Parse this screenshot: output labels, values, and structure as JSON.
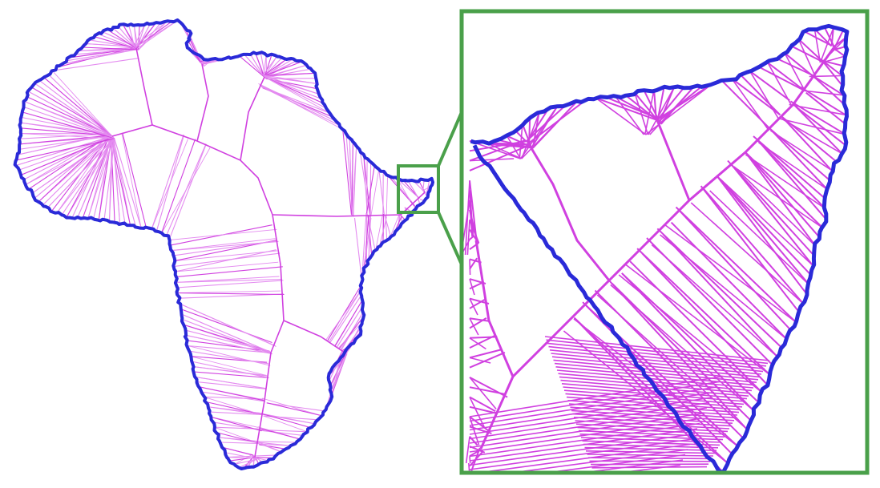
{
  "figure": {
    "description_visible_text": "",
    "colors": {
      "background": "#ffffff",
      "mesh": "#d040e0",
      "mesh_light": "#e48cf0",
      "outline": "#2a2ad8",
      "zoom_box": "#4aa04a",
      "skeleton": "#d040e0"
    },
    "panels": [
      {
        "id": "continent-overview",
        "kind": "triangulated-shape"
      },
      {
        "id": "zoomed-detail",
        "kind": "triangulated-shape-enlarged"
      }
    ],
    "mesh_density": {
      "overview_fan_lines": 260,
      "detail_fan_lines": 120
    }
  }
}
